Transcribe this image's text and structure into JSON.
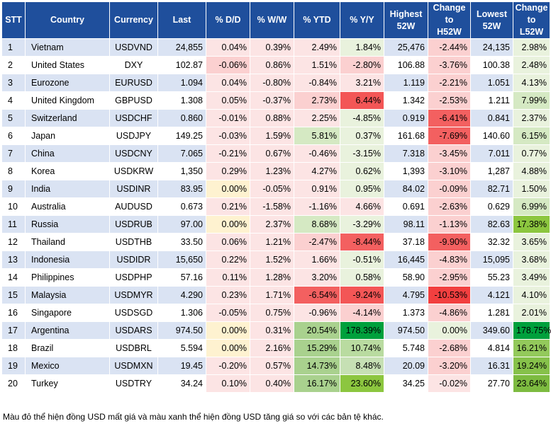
{
  "table": {
    "headers": [
      "STT",
      "Country",
      "Currency",
      "Last",
      "% D/D",
      "% W/W",
      "% YTD",
      "% Y/Y",
      "Highest\n52W",
      "Change\nto\nH52W",
      "Lowest\n52W",
      "Change\nto\nL52W"
    ],
    "rows": [
      [
        "1",
        "Vietnam",
        "USDVND",
        "24,855",
        "0.04%",
        "0.39%",
        "2.49%",
        "1.84%",
        "25,476",
        "-2.44%",
        "24,135",
        "2.98%"
      ],
      [
        "2",
        "United States",
        "DXY",
        "102.87",
        "-0.06%",
        "0.86%",
        "1.51%",
        "-2.80%",
        "106.88",
        "-3.76%",
        "100.38",
        "2.48%"
      ],
      [
        "3",
        "Eurozone",
        "EURUSD",
        "1.094",
        "0.04%",
        "-0.80%",
        "-0.84%",
        "3.21%",
        "1.119",
        "-2.21%",
        "1.051",
        "4.13%"
      ],
      [
        "4",
        "United Kingdom",
        "GBPUSD",
        "1.308",
        "0.05%",
        "-0.37%",
        "2.73%",
        "6.44%",
        "1.342",
        "-2.53%",
        "1.211",
        "7.99%"
      ],
      [
        "5",
        "Switzerland",
        "USDCHF",
        "0.860",
        "-0.01%",
        "0.88%",
        "2.25%",
        "-4.85%",
        "0.919",
        "-6.41%",
        "0.841",
        "2.37%"
      ],
      [
        "6",
        "Japan",
        "USDJPY",
        "149.25",
        "-0.03%",
        "1.59%",
        "5.81%",
        "0.37%",
        "161.68",
        "-7.69%",
        "140.60",
        "6.15%"
      ],
      [
        "7",
        "China",
        "USDCNY",
        "7.065",
        "-0.21%",
        "0.67%",
        "-0.46%",
        "-3.15%",
        "7.318",
        "-3.45%",
        "7.011",
        "0.77%"
      ],
      [
        "8",
        "Korea",
        "USDKRW",
        "1,350",
        "0.29%",
        "1.23%",
        "4.27%",
        "0.62%",
        "1,393",
        "-3.10%",
        "1,287",
        "4.88%"
      ],
      [
        "9",
        "India",
        "USDINR",
        "83.95",
        "0.00%",
        "-0.05%",
        "0.91%",
        "0.95%",
        "84.02",
        "-0.09%",
        "82.71",
        "1.50%"
      ],
      [
        "10",
        "Australia",
        "AUDUSD",
        "0.673",
        "0.21%",
        "-1.58%",
        "-1.16%",
        "4.66%",
        "0.691",
        "-2.63%",
        "0.629",
        "6.99%"
      ],
      [
        "11",
        "Russia",
        "USDRUB",
        "97.00",
        "0.00%",
        "2.37%",
        "8.68%",
        "-3.29%",
        "98.11",
        "-1.13%",
        "82.63",
        "17.38%"
      ],
      [
        "12",
        "Thailand",
        "USDTHB",
        "33.50",
        "0.06%",
        "1.21%",
        "-2.47%",
        "-8.44%",
        "37.18",
        "-9.90%",
        "32.32",
        "3.65%"
      ],
      [
        "13",
        "Indonesia",
        "USDIDR",
        "15,650",
        "0.22%",
        "1.52%",
        "1.66%",
        "-0.51%",
        "16,445",
        "-4.83%",
        "15,095",
        "3.68%"
      ],
      [
        "14",
        "Philippines",
        "USDPHP",
        "57.16",
        "0.11%",
        "1.28%",
        "3.20%",
        "0.58%",
        "58.90",
        "-2.95%",
        "55.23",
        "3.49%"
      ],
      [
        "15",
        "Malaysia",
        "USDMYR",
        "4.290",
        "0.23%",
        "1.71%",
        "-6.54%",
        "-9.24%",
        "4.795",
        "-10.53%",
        "4.121",
        "4.10%"
      ],
      [
        "16",
        "Singapore",
        "USDSGD",
        "1.306",
        "-0.05%",
        "0.75%",
        "-0.96%",
        "-4.14%",
        "1.373",
        "-4.86%",
        "1.281",
        "2.01%"
      ],
      [
        "17",
        "Argentina",
        "USDARS",
        "974.50",
        "0.00%",
        "0.31%",
        "20.54%",
        "178.39%",
        "974.50",
        "0.00%",
        "349.60",
        "178.75%"
      ],
      [
        "18",
        "Brazil",
        "USDBRL",
        "5.594",
        "0.00%",
        "2.16%",
        "15.29%",
        "10.74%",
        "5.748",
        "-2.68%",
        "4.814",
        "16.21%"
      ],
      [
        "19",
        "Mexico",
        "USDMXN",
        "19.45",
        "-0.20%",
        "0.57%",
        "14.73%",
        "8.48%",
        "20.09",
        "-3.20%",
        "16.31",
        "19.24%"
      ],
      [
        "20",
        "Turkey",
        "USDTRY",
        "34.24",
        "0.10%",
        "0.40%",
        "16.17%",
        "23.60%",
        "34.25",
        "-0.02%",
        "27.70",
        "23.64%"
      ]
    ],
    "cell_colors": {
      "0": {
        "4": "#fce4e4",
        "5": "#fce4e4",
        "6": "#fce4e4",
        "7": "#e9f2dd",
        "9": "#fbd0d0",
        "11": "#e9f2dd"
      },
      "1": {
        "4": "#fbd0d0",
        "5": "#fce4e4",
        "6": "#fce4e4",
        "7": "#fbd0d0",
        "9": "#fbd0d0",
        "11": "#e9f2dd"
      },
      "2": {
        "4": "#fce4e4",
        "5": "#fce4e4",
        "6": "#fce4e4",
        "7": "#fce4e4",
        "9": "#fbd0d0",
        "11": "#e9f2dd"
      },
      "3": {
        "4": "#fce4e4",
        "5": "#fce4e4",
        "6": "#fbd0d0",
        "7": "#f35656",
        "9": "#fbd0d0",
        "11": "#d5e9c3"
      },
      "4": {
        "4": "#fce4e4",
        "5": "#fce4e4",
        "6": "#fce4e4",
        "7": "#e9f2dd",
        "9": "#f36060",
        "11": "#e9f2dd"
      },
      "5": {
        "4": "#fce4e4",
        "5": "#fce4e4",
        "6": "#d5e9c3",
        "7": "#e9f2dd",
        "9": "#f36060",
        "11": "#d5e9c3"
      },
      "6": {
        "4": "#fce4e4",
        "5": "#fce4e4",
        "6": "#fce4e4",
        "7": "#e9f2dd",
        "9": "#fbd0d0",
        "11": "#e9f2dd"
      },
      "7": {
        "4": "#fce4e4",
        "5": "#fce4e4",
        "6": "#fce4e4",
        "7": "#e9f2dd",
        "9": "#fbd0d0",
        "11": "#e9f2dd"
      },
      "8": {
        "4": "#fef2d0",
        "5": "#fce4e4",
        "6": "#fce4e4",
        "7": "#e9f2dd",
        "9": "#fbd0d0",
        "11": "#e9f2dd"
      },
      "9": {
        "4": "#fce4e4",
        "5": "#fce4e4",
        "6": "#fce4e4",
        "7": "#fce4e4",
        "9": "#fbd0d0",
        "11": "#d5e9c3"
      },
      "10": {
        "4": "#fef2d0",
        "5": "#fce4e4",
        "6": "#d5e9c3",
        "7": "#e9f2dd",
        "9": "#fbd0d0",
        "11": "#8cc63f"
      },
      "11": {
        "4": "#fce4e4",
        "5": "#fce4e4",
        "6": "#fbd0d0",
        "7": "#f36060",
        "9": "#f36060",
        "11": "#e9f2dd"
      },
      "12": {
        "4": "#fce4e4",
        "5": "#fce4e4",
        "6": "#fce4e4",
        "7": "#e9f2dd",
        "9": "#fbd0d0",
        "11": "#e9f2dd"
      },
      "13": {
        "4": "#fce4e4",
        "5": "#fce4e4",
        "6": "#fce4e4",
        "7": "#e9f2dd",
        "9": "#fbd0d0",
        "11": "#e9f2dd"
      },
      "14": {
        "4": "#fce4e4",
        "5": "#fce4e4",
        "6": "#f36060",
        "7": "#f35656",
        "9": "#f23f3f",
        "11": "#e9f2dd"
      },
      "15": {
        "4": "#fce4e4",
        "5": "#fce4e4",
        "6": "#fce4e4",
        "7": "#fbd0d0",
        "9": "#fbd0d0",
        "11": "#e9f2dd"
      },
      "16": {
        "4": "#fef2d0",
        "5": "#fce4e4",
        "6": "#a9d18e",
        "7": "#00a03c",
        "9": "#e9f2dd",
        "11": "#00a03c"
      },
      "17": {
        "4": "#fef2d0",
        "5": "#fce4e4",
        "6": "#a9d18e",
        "7": "#b9dba0",
        "9": "#fbd0d0",
        "11": "#93c95b"
      },
      "18": {
        "4": "#fce4e4",
        "5": "#fce4e4",
        "6": "#a9d18e",
        "7": "#c6e0b4",
        "9": "#fbd0d0",
        "11": "#86c14a"
      },
      "19": {
        "4": "#fce4e4",
        "5": "#fce4e4",
        "6": "#a9d18e",
        "7": "#8cc63f",
        "9": "#fce4e4",
        "11": "#7dbb40"
      }
    }
  },
  "note": "Màu đỏ thể hiện đồng USD mất giá và màu xanh thể hiện đồng USD tăng giá so với các bản tệ khác."
}
